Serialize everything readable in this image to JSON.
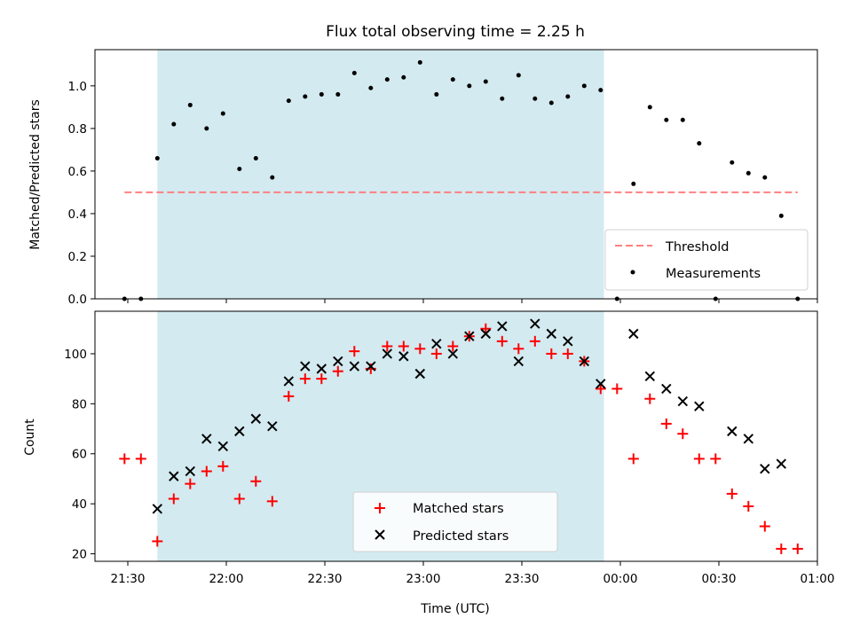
{
  "chart_data": {
    "title": "Flux total observing time = 2.25 h",
    "xlabel": "Time (UTC)",
    "x_ticks": [
      "21:30",
      "22:00",
      "22:30",
      "23:00",
      "23:30",
      "00:00",
      "00:30",
      "01:00"
    ],
    "x_range_minutes": [
      -10,
      210
    ],
    "shaded_region": {
      "from": "21:39",
      "to": "23:55",
      "color": "#d3eaf0"
    },
    "panels": [
      {
        "type": "scatter",
        "ylabel": "Matched/Predicted stars",
        "ylim": [
          0,
          1.17
        ],
        "y_ticks": [
          "0.0",
          "0.2",
          "0.4",
          "0.6",
          "0.8",
          "1.0"
        ],
        "legend_position": "bottom-right",
        "threshold": {
          "name": "Threshold",
          "value": 0.5,
          "x_from": "21:29",
          "x_to": "00:54",
          "color": "#ff8080"
        },
        "series": [
          {
            "name": "Measurements",
            "color": "#000000",
            "x": [
              "21:29",
              "21:34",
              "21:39",
              "21:44",
              "21:49",
              "21:54",
              "21:59",
              "22:04",
              "22:09",
              "22:14",
              "22:19",
              "22:24",
              "22:29",
              "22:34",
              "22:39",
              "22:44",
              "22:49",
              "22:54",
              "22:59",
              "23:04",
              "23:09",
              "23:14",
              "23:19",
              "23:24",
              "23:29",
              "23:34",
              "23:39",
              "23:44",
              "23:49",
              "23:54",
              "23:59",
              "00:04",
              "00:09",
              "00:14",
              "00:19",
              "00:24",
              "00:29",
              "00:34",
              "00:39",
              "00:44",
              "00:49",
              "00:54"
            ],
            "y": [
              0.0,
              0.0,
              0.66,
              0.82,
              0.91,
              0.8,
              0.87,
              0.61,
              0.66,
              0.57,
              0.93,
              0.95,
              0.96,
              0.96,
              1.06,
              0.99,
              1.03,
              1.04,
              1.11,
              0.96,
              1.03,
              1.0,
              1.02,
              0.94,
              1.05,
              0.94,
              0.92,
              0.95,
              1.0,
              0.98,
              0.0,
              0.54,
              0.9,
              0.84,
              0.84,
              0.73,
              0.0,
              0.64,
              0.59,
              0.57,
              0.39,
              0.0
            ]
          }
        ]
      },
      {
        "type": "scatter",
        "ylabel": "Count",
        "ylim": [
          17,
          117
        ],
        "y_ticks": [
          "20",
          "40",
          "60",
          "80",
          "100"
        ],
        "legend_position": "bottom-center",
        "series": [
          {
            "name": "Matched stars",
            "marker": "plus",
            "color": "#ff0000",
            "x": [
              "21:29",
              "21:34",
              "21:39",
              "21:44",
              "21:49",
              "21:54",
              "21:59",
              "22:04",
              "22:09",
              "22:14",
              "22:19",
              "22:24",
              "22:29",
              "22:34",
              "22:39",
              "22:44",
              "22:49",
              "22:54",
              "22:59",
              "23:04",
              "23:09",
              "23:14",
              "23:19",
              "23:24",
              "23:29",
              "23:34",
              "23:39",
              "23:44",
              "23:49",
              "23:54",
              "23:59",
              "00:04",
              "00:09",
              "00:14",
              "00:19",
              "00:24",
              "00:29",
              "00:34",
              "00:39",
              "00:44",
              "00:49",
              "00:54"
            ],
            "y": [
              58,
              58,
              25,
              42,
              48,
              53,
              55,
              42,
              49,
              41,
              83,
              90,
              90,
              93,
              101,
              94,
              103,
              103,
              102,
              100,
              103,
              107,
              110,
              105,
              102,
              105,
              100,
              100,
              97,
              86,
              86,
              58,
              82,
              72,
              68,
              58,
              58,
              44,
              39,
              31,
              22,
              22
            ]
          },
          {
            "name": "Predicted stars",
            "marker": "x",
            "color": "#000000",
            "x": [
              "21:39",
              "21:44",
              "21:49",
              "21:54",
              "21:59",
              "22:04",
              "22:09",
              "22:14",
              "22:19",
              "22:24",
              "22:29",
              "22:34",
              "22:39",
              "22:44",
              "22:49",
              "22:54",
              "22:59",
              "23:04",
              "23:09",
              "23:14",
              "23:19",
              "23:24",
              "23:29",
              "23:34",
              "23:39",
              "23:44",
              "23:49",
              "23:54",
              "00:04",
              "00:09",
              "00:14",
              "00:19",
              "00:24",
              "00:34",
              "00:39",
              "00:44",
              "00:49"
            ],
            "y": [
              38,
              51,
              53,
              66,
              63,
              69,
              74,
              71,
              89,
              95,
              94,
              97,
              95,
              95,
              100,
              99,
              92,
              104,
              100,
              107,
              108,
              111,
              97,
              112,
              108,
              105,
              97,
              88,
              108,
              91,
              86,
              81,
              79,
              69,
              66,
              54,
              56
            ]
          }
        ]
      }
    ]
  }
}
